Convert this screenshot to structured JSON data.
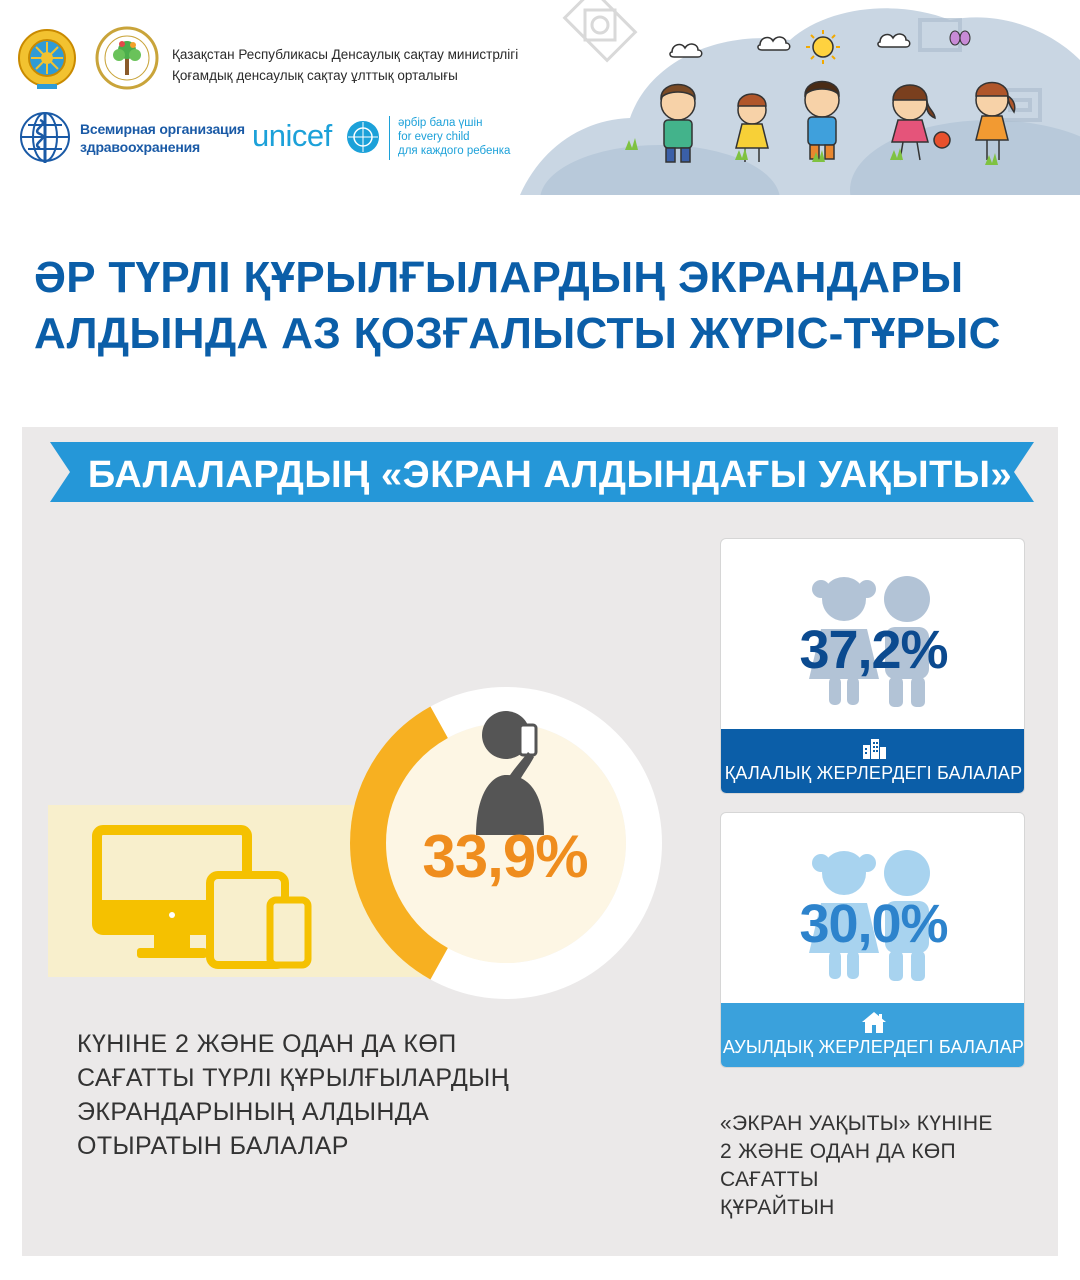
{
  "header": {
    "ministry_line1": "Қазақстан Республикасы Денсаулық сақтау министрлігі",
    "ministry_line2": "Қоғамдық денсаулық сақтау ұлттық орталығы",
    "who_line1": "Всемирная организация",
    "who_line2": "здравоохранения",
    "unicef_word": "unicef",
    "unicef_tag_line1": "әрбір бала үшін",
    "unicef_tag_line2": "for every child",
    "unicef_tag_line3": "для каждого ребенка"
  },
  "title": {
    "line1": "ӘР ТҮРЛІ ҚҰРЫЛҒЫЛАРДЫҢ ЭКРАНДАРЫ",
    "line2": "АЛДЫНДА АЗ ҚОЗҒАЛЫСТЫ ЖҮРІС-ТҰРЫС"
  },
  "banner": "БАЛАЛАРДЫҢ «ЭКРАН АЛДЫНДАҒЫ УАҚЫТЫ»",
  "overall": {
    "percent_label": "33,9%",
    "percent_value": 33.9,
    "desc_line1": "КҮНІНЕ 2 ЖӘНЕ ОДАН ДА КӨП",
    "desc_line2": "САҒАТТЫ ТҮРЛІ ҚҰРЫЛҒЫЛАРДЫҢ",
    "desc_line3": "ЭКРАНДАРЫНЫҢ АЛДЫНДА",
    "desc_line4": "ОТЫРАТЫН БАЛАЛАР"
  },
  "urban": {
    "percent_label": "37,2%",
    "label": "ҚАЛАЛЫҚ ЖЕРЛЕРДЕГІ БАЛАЛАР",
    "icon": "city-buildings-icon"
  },
  "rural": {
    "percent_label": "30,0%",
    "label": "АУЫЛДЫҚ ЖЕРЛЕРДЕГІ БАЛАЛАР",
    "icon": "house-icon"
  },
  "note": {
    "line1": "«ЭКРАН УАҚЫТЫ» КҮНІНЕ",
    "line2": "2 ЖӘНЕ ОДАН ДА КӨП САҒАТТЫ",
    "line3": "ҚҰРАЙТЫН"
  },
  "colors": {
    "title_blue": "#0b5ea8",
    "ring_orange": "#f7b021",
    "percent_orange": "#ef8d1e",
    "device_yellow": "#f5c100",
    "urban_blue": "#0b5ea8",
    "rural_blue": "#3aa1dc"
  }
}
